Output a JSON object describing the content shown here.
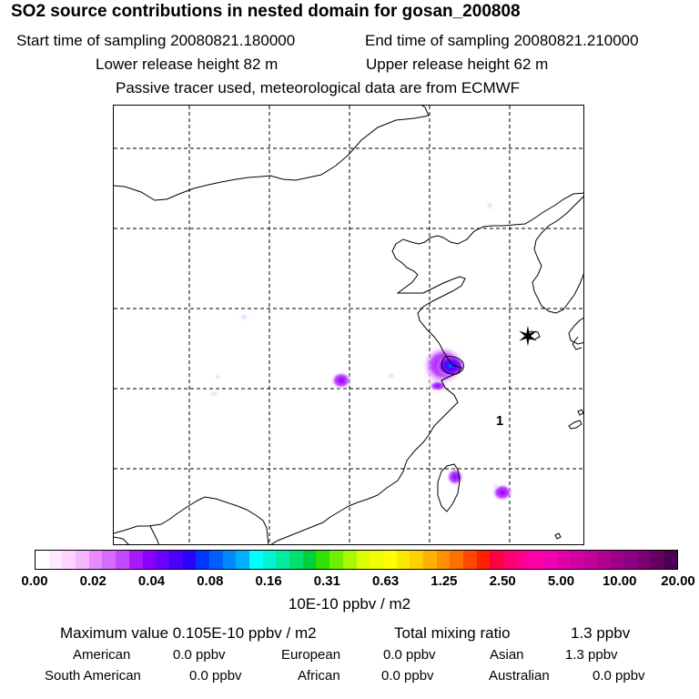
{
  "header": {
    "title": "SO2 source contributions in nested domain for gosan_200808",
    "start_time": "Start time of sampling 20080821.180000",
    "end_time": "End time of sampling 20080821.210000",
    "lower_release": "Lower release height   82 m",
    "upper_release": "Upper release height   62 m",
    "note": "Passive tracer used, meteorological data are from ECMWF"
  },
  "map": {
    "receptor_marker": "✶",
    "annotation": "1"
  },
  "colorbar": {
    "ticks": [
      "0.00",
      "0.02",
      "0.04",
      "0.08",
      "0.16",
      "0.31",
      "0.63",
      "1.25",
      "2.50",
      "5.00",
      "10.00",
      "20.00"
    ],
    "colors": [
      "#ffffff",
      "#ffe9ff",
      "#ffd2ff",
      "#f6b6ff",
      "#e78cff",
      "#d66bff",
      "#c24aff",
      "#a718ff",
      "#8a00ff",
      "#6a00ff",
      "#4a00ff",
      "#2a00ff",
      "#0036ff",
      "#0060ff",
      "#0088ff",
      "#00b0ff",
      "#00ffff",
      "#00f5d0",
      "#00eba0",
      "#00e070",
      "#00d040",
      "#30e000",
      "#70f000",
      "#a8f800",
      "#dcff00",
      "#f0ff00",
      "#ffff00",
      "#ffe800",
      "#ffd000",
      "#ffb000",
      "#ff9000",
      "#ff7000",
      "#ff4800",
      "#ff2000",
      "#ff0040",
      "#ff0070",
      "#ff0090",
      "#ff00a8",
      "#f000b0",
      "#e000a8",
      "#d000a0",
      "#c00098",
      "#b00090",
      "#9c0088",
      "#8a0080",
      "#780070",
      "#620060",
      "#4a0050"
    ],
    "units": "10E-10 ppbv / m2"
  },
  "summary": {
    "max_value": "Maximum value  0.105E-10 ppbv / m2",
    "total_label": "Total mixing ratio",
    "total_value": "1.3 ppbv"
  },
  "regions": [
    {
      "name": "American",
      "value": "0.0 ppbv"
    },
    {
      "name": "European",
      "value": "0.0 ppbv"
    },
    {
      "name": "Asian",
      "value": "1.3 ppbv"
    },
    {
      "name": "South American",
      "value": "0.0 ppbv"
    },
    {
      "name": "African",
      "value": "0.0 ppbv"
    },
    {
      "name": "Australian",
      "value": "0.0 ppbv"
    }
  ]
}
